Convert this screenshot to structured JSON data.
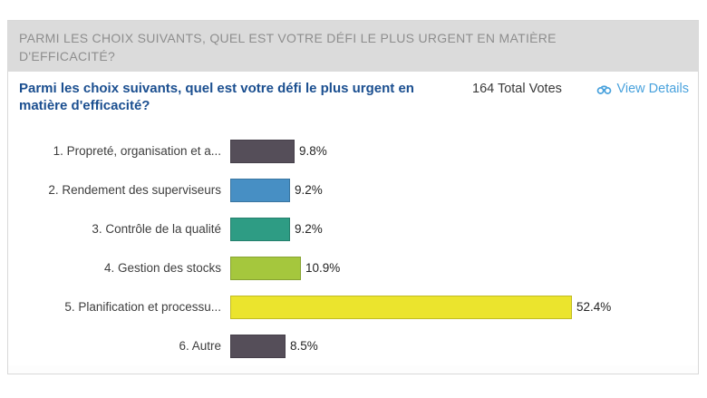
{
  "banner": {
    "text": "PARMI LES CHOIX SUIVANTS, QUEL EST VOTRE DÉFI LE PLUS URGENT EN MATIÈRE D'EFFICACITÉ?"
  },
  "poll": {
    "title": "Parmi les choix suivants, quel est votre défi le plus urgent en matière d'efficacité?",
    "total_votes": "164 Total Votes",
    "view_details": "View Details",
    "view_details_icon": "binoculars-icon"
  },
  "chart_data": {
    "type": "bar",
    "orientation": "horizontal",
    "title": "Parmi les choix suivants, quel est votre défi le plus urgent en matière d'efficacité?",
    "total_votes": 164,
    "categories": [
      "1. Propreté, organisation et a...",
      "2. Rendement des superviseurs",
      "3. Contrôle de la qualité",
      "4. Gestion des stocks",
      "5. Planification et processu...",
      "6. Autre"
    ],
    "values": [
      9.8,
      9.2,
      9.2,
      10.9,
      52.4,
      8.5
    ],
    "value_labels": [
      "9.8%",
      "9.2%",
      "9.2%",
      "10.9%",
      "52.4%",
      "8.5%"
    ],
    "bar_colors": [
      "#554E59",
      "#478FC4",
      "#2E9C84",
      "#A5C73D",
      "#EBE42D",
      "#554E59"
    ],
    "xlim": [
      0,
      100
    ],
    "grid": false,
    "legend": false,
    "value_label_position": "right-of-bar"
  },
  "colors": {
    "banner_bg": "#dbdbdb",
    "banner_text": "#8e8e8e",
    "title_text": "#1b4f90",
    "votes_text": "#3a3a3a",
    "link": "#49a2dd",
    "label_text": "#3e3e3e",
    "pct_text": "#242424",
    "panel_border": "#d9d9d9"
  }
}
